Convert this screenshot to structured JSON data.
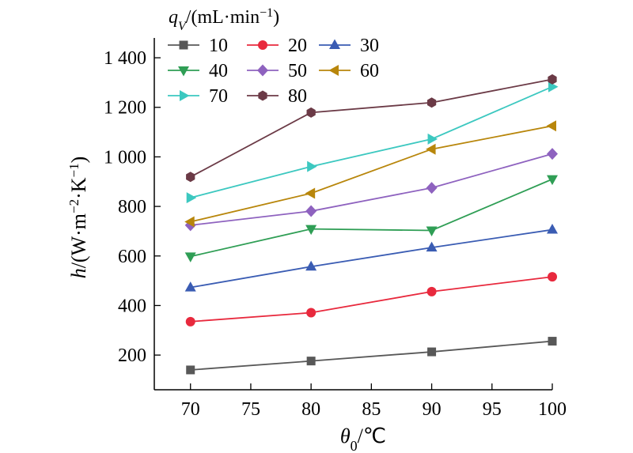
{
  "chart_data": {
    "type": "line",
    "x": [
      70,
      80,
      90,
      100
    ],
    "xlim": [
      67,
      100
    ],
    "ylim": [
      60,
      1480
    ],
    "xticks": [
      70,
      75,
      80,
      85,
      90,
      95,
      100
    ],
    "yticks": [
      200,
      400,
      600,
      800,
      1000,
      1200,
      1400
    ],
    "ytick_labels": [
      "200",
      "400",
      "600",
      "800",
      "1 000",
      "1 200",
      "1 400"
    ],
    "xlabel": "θ0/℃",
    "ylabel": "h/(W·m−2·K−1)",
    "legend_title": "qV/(mL·min−1)",
    "legend_placement": "top-left",
    "grid": false,
    "series": [
      {
        "name": "10",
        "color": "#585858",
        "marker": "square",
        "values": [
          140,
          176,
          213,
          256
        ]
      },
      {
        "name": "20",
        "color": "#e8293d",
        "marker": "circle",
        "values": [
          335,
          371,
          456,
          516
        ]
      },
      {
        "name": "30",
        "color": "#3a5cb3",
        "marker": "triangle-up",
        "values": [
          473,
          557,
          634,
          706
        ]
      },
      {
        "name": "40",
        "color": "#2f9e55",
        "marker": "triangle-down",
        "values": [
          598,
          709,
          703,
          910
        ]
      },
      {
        "name": "50",
        "color": "#8e62bf",
        "marker": "diamond",
        "values": [
          724,
          781,
          875,
          1012
        ]
      },
      {
        "name": "60",
        "color": "#b8860b",
        "marker": "triangle-left",
        "values": [
          738,
          853,
          1031,
          1125
        ]
      },
      {
        "name": "70",
        "color": "#3cc8c0",
        "marker": "triangle-right",
        "values": [
          835,
          961,
          1072,
          1283
        ]
      },
      {
        "name": "80",
        "color": "#6b3a46",
        "marker": "hexagon",
        "values": [
          919,
          1179,
          1219,
          1313
        ]
      }
    ]
  }
}
